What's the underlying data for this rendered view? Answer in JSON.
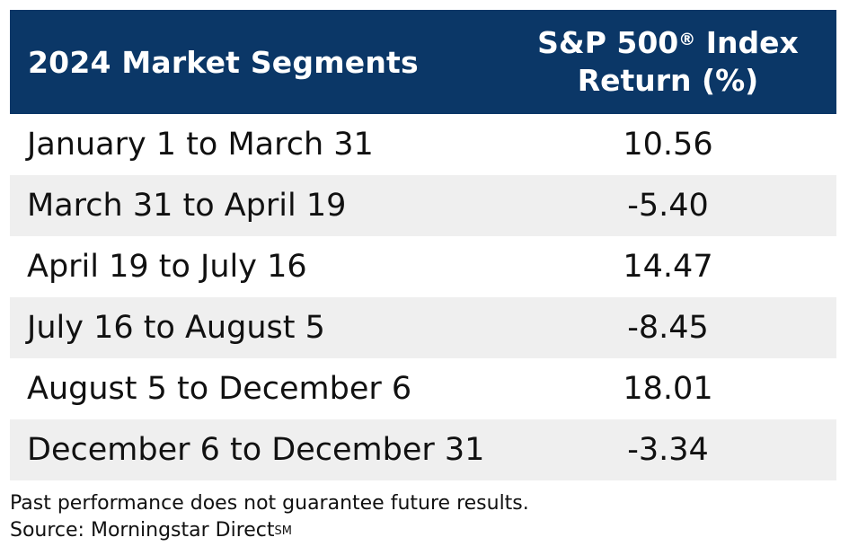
{
  "chart_data": {
    "type": "table",
    "columns": [
      "2024 Market Segments",
      "S&P 500® Index Return (%)"
    ],
    "rows": [
      {
        "segment": "January 1 to March 31",
        "return_pct": "10.56"
      },
      {
        "segment": "March 31 to April 19",
        "return_pct": "-5.40"
      },
      {
        "segment": "April 19 to July 16",
        "return_pct": "14.47"
      },
      {
        "segment": "July 16 to August 5",
        "return_pct": "-8.45"
      },
      {
        "segment": "August 5 to December 6",
        "return_pct": "18.01"
      },
      {
        "segment": "December 6 to December 31",
        "return_pct": "-3.34"
      }
    ]
  },
  "header": {
    "segments_label": "2024 Market Segments",
    "return_label_main": "S&P 500",
    "return_label_mark": "®",
    "return_label_suffix": " Index",
    "return_label_line2": "Return (%)"
  },
  "footer": {
    "disclaimer": "Past performance does not guarantee future results.",
    "source": "Source: Morningstar Direct",
    "source_mark": "SM"
  },
  "colors": {
    "header_bg": "#0b3767",
    "header_text": "#ffffff",
    "row_shade": "#efefef"
  }
}
